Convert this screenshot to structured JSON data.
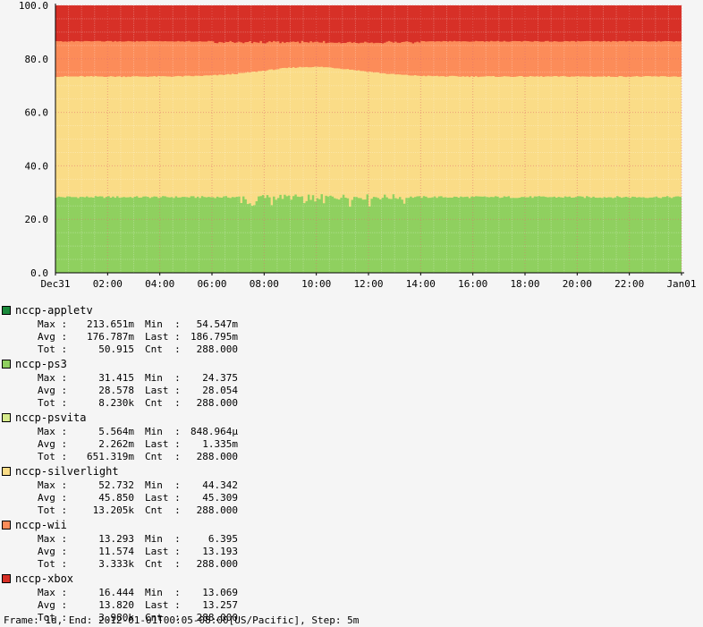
{
  "chart_data": {
    "type": "area",
    "stacked": true,
    "ylim": [
      0,
      100
    ],
    "y_ticks": [
      "0.0",
      "20.0",
      "40.0",
      "60.0",
      "80.0",
      "100.0"
    ],
    "x_ticks": [
      "Dec31",
      "02:00",
      "04:00",
      "06:00",
      "08:00",
      "10:00",
      "12:00",
      "14:00",
      "16:00",
      "18:00",
      "20:00",
      "22:00",
      "Jan01"
    ],
    "x_hours": [
      0,
      24
    ],
    "grid": true,
    "series": [
      {
        "name": "nccp-appletv",
        "color": "#1b8a3c",
        "approx_level": 0.18
      },
      {
        "name": "nccp-ps3",
        "color": "#8fd05f",
        "approx_level": 28.5
      },
      {
        "name": "nccp-psvita",
        "color": "#d6eb8c",
        "approx_level": 0.002
      },
      {
        "name": "nccp-silverlight",
        "color": "#fadc87",
        "approx_level": 45.3
      },
      {
        "name": "nccp-wii",
        "color": "#fc8c59",
        "approx_level": 13.2
      },
      {
        "name": "nccp-xbox",
        "color": "#d73027",
        "approx_level": 13.3
      }
    ]
  },
  "legend": [
    {
      "name": "nccp-appletv",
      "color": "#1b8a3c",
      "rows": [
        [
          "Max :",
          "213.651m",
          "Min  :",
          "54.547m"
        ],
        [
          "Avg :",
          "176.787m",
          "Last :",
          "186.795m"
        ],
        [
          "Tot :",
          "50.915",
          "Cnt  :",
          "288.000"
        ]
      ]
    },
    {
      "name": "nccp-ps3",
      "color": "#8fd05f",
      "rows": [
        [
          "Max :",
          "31.415",
          "Min  :",
          "24.375"
        ],
        [
          "Avg :",
          "28.578",
          "Last :",
          "28.054"
        ],
        [
          "Tot :",
          "8.230k",
          "Cnt  :",
          "288.000"
        ]
      ]
    },
    {
      "name": "nccp-psvita",
      "color": "#d6eb8c",
      "rows": [
        [
          "Max :",
          "5.564m",
          "Min  :",
          "848.964µ"
        ],
        [
          "Avg :",
          "2.262m",
          "Last :",
          "1.335m"
        ],
        [
          "Tot :",
          "651.319m",
          "Cnt  :",
          "288.000"
        ]
      ]
    },
    {
      "name": "nccp-silverlight",
      "color": "#fadc87",
      "rows": [
        [
          "Max :",
          "52.732",
          "Min  :",
          "44.342"
        ],
        [
          "Avg :",
          "45.850",
          "Last :",
          "45.309"
        ],
        [
          "Tot :",
          "13.205k",
          "Cnt  :",
          "288.000"
        ]
      ]
    },
    {
      "name": "nccp-wii",
      "color": "#fc8c59",
      "rows": [
        [
          "Max :",
          "13.293",
          "Min  :",
          "6.395"
        ],
        [
          "Avg :",
          "11.574",
          "Last :",
          "13.193"
        ],
        [
          "Tot :",
          "3.333k",
          "Cnt  :",
          "288.000"
        ]
      ]
    },
    {
      "name": "nccp-xbox",
      "color": "#d73027",
      "rows": [
        [
          "Max :",
          "16.444",
          "Min  :",
          "13.069"
        ],
        [
          "Avg :",
          "13.820",
          "Last :",
          "13.257"
        ],
        [
          "Tot :",
          "3.980k",
          "Cnt  :",
          "288.000"
        ]
      ]
    }
  ],
  "footer": "Frame: 1d, End: 2012-01-01T00:05-08:00[US/Pacific], Step: 5m"
}
